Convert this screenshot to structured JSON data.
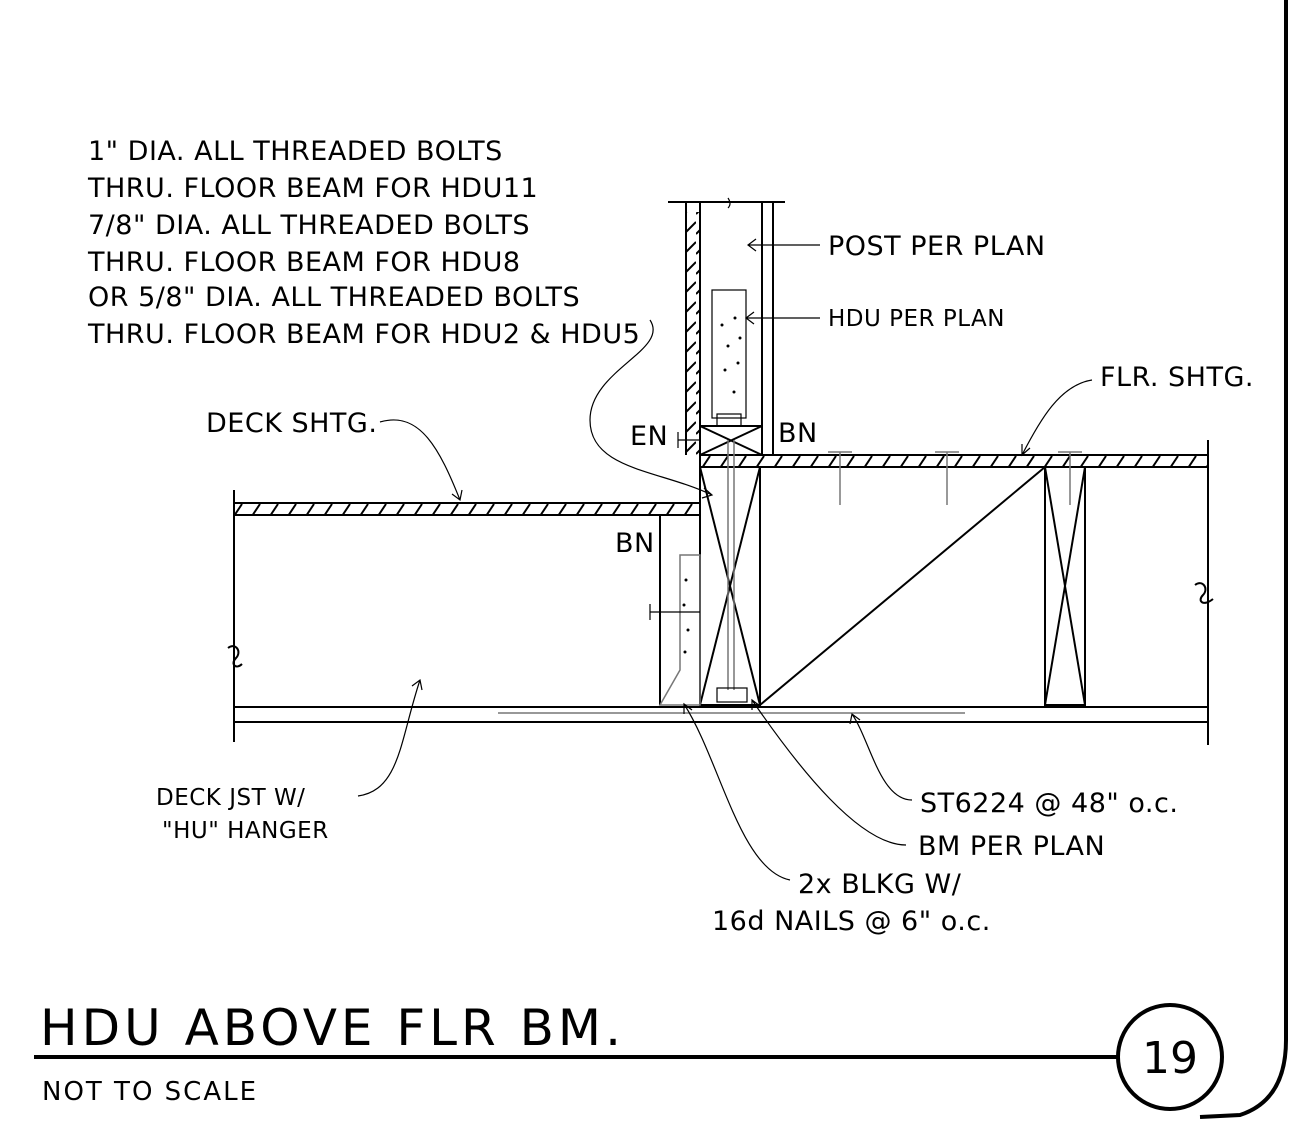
{
  "detail": {
    "title": "HDU ABOVE FLR BM.",
    "scale_note": "NOT TO SCALE",
    "number": "19"
  },
  "bolt_note": {
    "lines": [
      "1\" DIA. ALL THREADED BOLTS",
      "THRU. FLOOR BEAM FOR HDU11",
      "7/8\" DIA. ALL THREADED BOLTS",
      "THRU. FLOOR BEAM FOR HDU8",
      "OR 5/8\" DIA. ALL THREADED BOLTS",
      "THRU. FLOOR BEAM FOR HDU2 & HDU5"
    ]
  },
  "labels": {
    "post": "POST PER PLAN",
    "hdu": "HDU PER PLAN",
    "flr_shtg": "FLR. SHTG.",
    "deck_shtg": "DECK SHTG.",
    "en": "EN",
    "bn_upper": "BN",
    "bn_lower": "BN",
    "deck_jst_1": "DECK JST W/",
    "deck_jst_2": "\"HU\" HANGER",
    "strap": "ST6224 @ 48\" o.c.",
    "beam": "BM PER PLAN",
    "blkg_1": "2x BLKG W/",
    "blkg_2": "16d NAILS @ 6\" o.c."
  }
}
